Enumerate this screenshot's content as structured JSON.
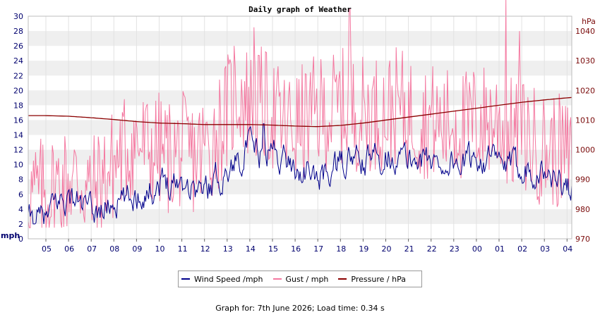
{
  "chart_data": {
    "type": "line",
    "title": "Daily graph of Weather",
    "y_left": {
      "unit": "mph",
      "min": 0,
      "max": 30,
      "ticks": [
        "0",
        "2",
        "4",
        "6",
        "8",
        "10",
        "12",
        "14",
        "16",
        "18",
        "20",
        "22",
        "24",
        "26",
        "28",
        "30"
      ]
    },
    "y_right": {
      "unit": "hPa",
      "min": 970,
      "max": 1045,
      "ticks": [
        "970",
        "980",
        "990",
        "1000",
        "1010",
        "1020",
        "1030",
        "1040"
      ]
    },
    "x_ticks": [
      "05",
      "06",
      "07",
      "08",
      "09",
      "10",
      "11",
      "12",
      "13",
      "14",
      "15",
      "16",
      "17",
      "18",
      "19",
      "20",
      "21",
      "22",
      "23",
      "00",
      "01",
      "02",
      "03",
      "04"
    ],
    "grid": true,
    "legend_position": "bottom",
    "series": [
      {
        "name": "Wind Speed /mph",
        "axis": "left",
        "color": "#00008b",
        "anchors": [
          [
            0,
            2.5
          ],
          [
            0.5,
            5
          ],
          [
            1,
            5.5
          ],
          [
            1.5,
            5
          ],
          [
            2,
            3.5
          ],
          [
            2.5,
            4
          ],
          [
            3,
            5
          ],
          [
            3.5,
            5
          ],
          [
            4,
            6
          ],
          [
            4.5,
            6.5
          ],
          [
            5,
            7.5
          ],
          [
            5.5,
            8
          ],
          [
            6,
            8
          ],
          [
            6.5,
            7
          ],
          [
            7,
            6.5
          ],
          [
            7.5,
            8
          ],
          [
            8,
            9
          ],
          [
            8.5,
            11
          ],
          [
            9,
            12.5
          ],
          [
            9.5,
            11
          ],
          [
            10,
            12
          ],
          [
            10.5,
            11
          ],
          [
            11,
            9.5
          ],
          [
            11.5,
            9
          ],
          [
            12,
            8
          ],
          [
            12.5,
            9
          ],
          [
            13,
            10
          ],
          [
            13.5,
            11
          ],
          [
            14,
            10
          ],
          [
            14.5,
            11
          ],
          [
            15,
            11.5
          ],
          [
            15.5,
            11
          ],
          [
            16,
            10.5
          ],
          [
            16.5,
            11
          ],
          [
            17,
            10.5
          ],
          [
            17.5,
            10
          ],
          [
            18,
            10.5
          ],
          [
            18.5,
            10
          ],
          [
            19,
            11
          ],
          [
            19.5,
            11
          ],
          [
            20,
            10
          ],
          [
            20.5,
            9.5
          ],
          [
            21,
            10
          ],
          [
            21.5,
            9.5
          ],
          [
            22,
            9
          ],
          [
            22.5,
            8
          ],
          [
            23,
            7
          ],
          [
            23.5,
            6
          ],
          [
            24,
            4.5
          ]
        ],
        "peaks": [
          [
            9.6,
            15.5
          ]
        ]
      },
      {
        "name": "Gust / mph",
        "axis": "left",
        "color": "#f478a0",
        "anchors": [
          [
            0,
            6
          ],
          [
            0.5,
            7
          ],
          [
            1,
            8
          ],
          [
            1.5,
            8
          ],
          [
            2,
            6
          ],
          [
            2.5,
            8
          ],
          [
            3,
            10
          ],
          [
            3.5,
            12
          ],
          [
            4,
            13
          ],
          [
            4.5,
            12
          ],
          [
            5,
            12
          ],
          [
            5.5,
            11
          ],
          [
            6,
            12
          ],
          [
            6.5,
            11
          ],
          [
            7,
            12
          ],
          [
            7.5,
            14
          ],
          [
            8,
            17
          ],
          [
            8.5,
            20
          ],
          [
            9,
            18
          ],
          [
            9.5,
            18
          ],
          [
            10,
            17
          ],
          [
            10.5,
            15
          ],
          [
            11,
            15
          ],
          [
            11.5,
            16
          ],
          [
            12,
            17
          ],
          [
            12.5,
            17
          ],
          [
            13,
            18
          ],
          [
            13.5,
            17
          ],
          [
            14,
            17
          ],
          [
            14.5,
            17
          ],
          [
            15,
            17
          ],
          [
            15.5,
            18
          ],
          [
            16,
            17
          ],
          [
            16.5,
            16
          ],
          [
            17,
            16
          ],
          [
            17.5,
            15
          ],
          [
            18,
            16
          ],
          [
            18.5,
            15
          ],
          [
            19,
            16
          ],
          [
            19.5,
            16
          ],
          [
            20,
            16
          ],
          [
            20.5,
            14
          ],
          [
            21,
            14
          ],
          [
            21.5,
            13
          ],
          [
            22,
            12
          ],
          [
            22.5,
            12
          ],
          [
            23,
            11
          ],
          [
            23.5,
            9
          ],
          [
            24,
            7
          ]
        ],
        "peaks": [
          [
            13.4,
            31
          ],
          [
            20.3,
            32.5
          ],
          [
            20.9,
            28
          ],
          [
            9.2,
            28.5
          ],
          [
            8.3,
            26
          ]
        ]
      },
      {
        "name": "Pressure / hPa",
        "axis": "right",
        "color": "#8b0000",
        "points": [
          [
            0,
            1011.5
          ],
          [
            1,
            1011.3
          ],
          [
            2,
            1010.8
          ],
          [
            3,
            1010.2
          ],
          [
            4,
            1009.5
          ],
          [
            5,
            1009
          ],
          [
            6,
            1008.8
          ],
          [
            7,
            1008.5
          ],
          [
            8,
            1008.5
          ],
          [
            9,
            1008.5
          ],
          [
            10,
            1008.3
          ],
          [
            11,
            1008
          ],
          [
            12,
            1007.8
          ],
          [
            13,
            1008.2
          ],
          [
            14,
            1009
          ],
          [
            15,
            1010
          ],
          [
            16,
            1011
          ],
          [
            17,
            1012
          ],
          [
            18,
            1013
          ],
          [
            19,
            1014
          ],
          [
            20,
            1015
          ],
          [
            21,
            1016
          ],
          [
            22,
            1016.8
          ],
          [
            23,
            1017.5
          ],
          [
            24,
            1018
          ]
        ]
      }
    ]
  },
  "legend": {
    "items": [
      {
        "label": "Wind Speed /mph",
        "color": "#00008b"
      },
      {
        "label": "Gust / mph",
        "color": "#f478a0"
      },
      {
        "label": "Pressure / hPa",
        "color": "#8b0000"
      }
    ]
  },
  "footer": {
    "text": "Graph for: 7th June 2026; Load time: 0.34 s"
  }
}
